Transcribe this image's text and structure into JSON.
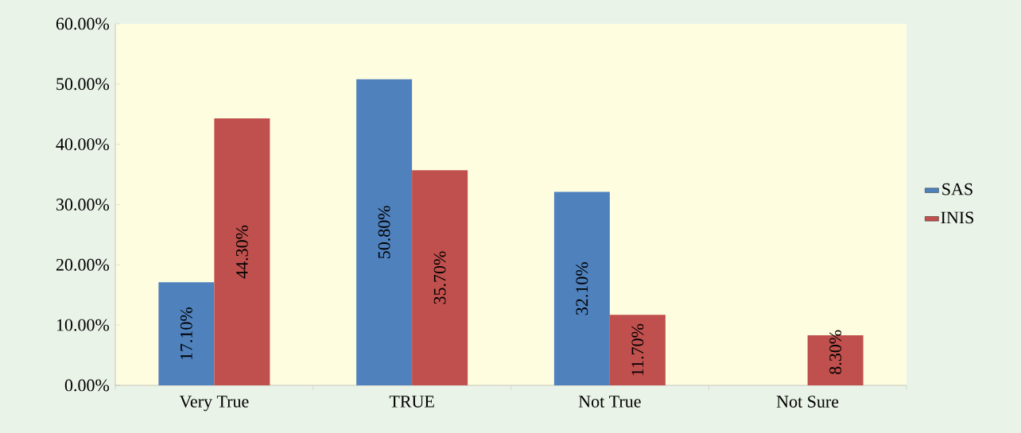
{
  "chart_data": {
    "type": "bar",
    "categories": [
      "Very True",
      "TRUE",
      "Not True",
      "Not Sure"
    ],
    "series": [
      {
        "name": "SAS",
        "color": "#4f81bd",
        "values": [
          17.1,
          50.8,
          32.1,
          null
        ],
        "value_labels": [
          "17.10%",
          "50.80%",
          "32.10%",
          null
        ]
      },
      {
        "name": "INIS",
        "color": "#c0504d",
        "values": [
          44.3,
          35.7,
          11.7,
          8.3
        ],
        "value_labels": [
          "44.30%",
          "35.70%",
          "11.70%",
          "8.30%"
        ]
      }
    ],
    "ylim": [
      0,
      60
    ],
    "yticks": [
      {
        "value": 0,
        "label": "0.00%"
      },
      {
        "value": 10,
        "label": "10.00%"
      },
      {
        "value": 20,
        "label": "20.00%"
      },
      {
        "value": 30,
        "label": "30.00%"
      },
      {
        "value": 40,
        "label": "40.00%"
      },
      {
        "value": 50,
        "label": "50.00%"
      },
      {
        "value": 60,
        "label": "60.00%"
      }
    ],
    "grid": false,
    "legend": "right"
  }
}
